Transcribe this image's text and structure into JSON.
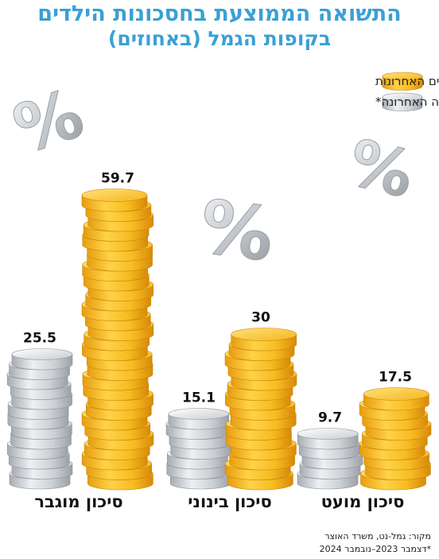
{
  "title": {
    "line1": "התשואה הממוצעת בחסכונות הילדים",
    "line2": "בקופות הגמל (באחוזים)"
  },
  "colors": {
    "title": "#3aa0d4",
    "gold": "#f5b820",
    "silver": "#c9cdd2"
  },
  "chart_data": {
    "type": "bar",
    "categories": [
      "סיכון מוגבר",
      "סיכון בינוני",
      "סיכון מועט"
    ],
    "series": [
      {
        "name": "בשנה האחרונה*",
        "color": "silver",
        "values": [
          25.5,
          15.1,
          9.7
        ]
      },
      {
        "name": "בחמש השנים האחרונות",
        "color": "gold",
        "values": [
          59.7,
          30,
          17.5
        ]
      }
    ],
    "value_labels": [
      [
        "25.5",
        "15.1",
        "9.7"
      ],
      [
        "59.7",
        "30",
        "17.5"
      ]
    ],
    "ylim": [
      0,
      60
    ],
    "legend": "top-right",
    "grid": false
  },
  "decorations": {
    "percent_symbol": "%"
  },
  "source": {
    "line1": "מקור: גמל-נט, משרד האוצר",
    "line2": "*דצמבר 2023–נובמבר 2024"
  }
}
